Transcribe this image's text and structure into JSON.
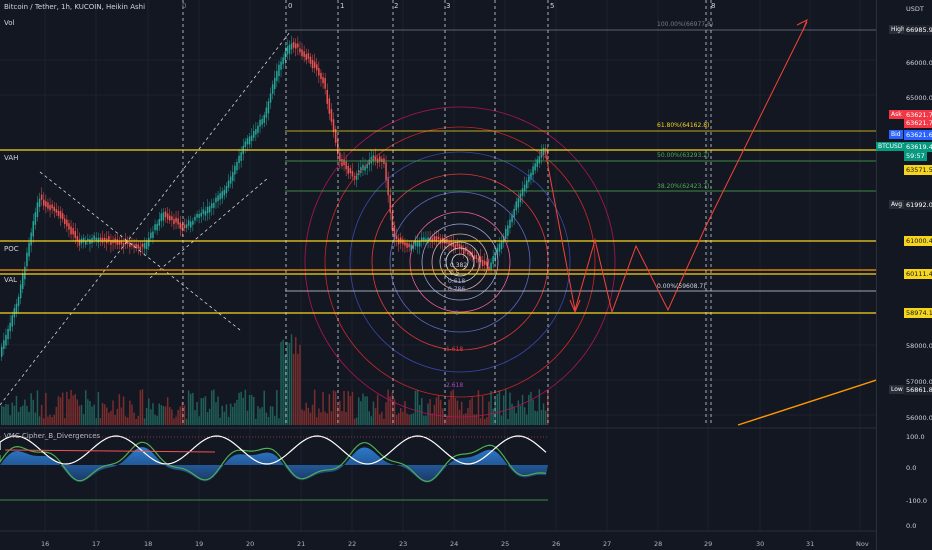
{
  "header": {
    "title": "Bitcoin / Tether, 1h, KUCOIN, Heikin Ashi",
    "volume_label": "Vol",
    "indicator_title": "VMC Cipher_B_Divergences",
    "currency": "USDT"
  },
  "levels": {
    "vah": "VAH",
    "poc": "POC",
    "val": "VAL"
  },
  "fib_labels": [
    "100.00%(66977.8)",
    "61.80%(64162.8)",
    "50.00%(63293.2)",
    "38.20%(62423.7)",
    "0.00%(59608.7)"
  ],
  "fib_circle_labels": [
    "0.382",
    "0.5",
    "0.618",
    "0.786",
    "1",
    "1.618",
    "2.618"
  ],
  "wave_labels": [
    "0",
    "1",
    "2",
    "3",
    "4",
    "5",
    "8"
  ],
  "price_axis": {
    "ticks": [
      "66000.0",
      "65000.0",
      "58000.0",
      "57000.0",
      "56000.0"
    ],
    "badges": [
      {
        "tag": "High",
        "value": "66985.9",
        "color": "#1e222d"
      },
      {
        "tag": "Ask",
        "value": "63621.7",
        "color": "#f23645"
      },
      {
        "tag": "",
        "value": "63621.7",
        "color": "#f23645"
      },
      {
        "tag": "Bid",
        "value": "63621.6",
        "color": "#2962ff"
      },
      {
        "tag": "BTCUSDT",
        "value": "63619.4",
        "color": "#089981"
      },
      {
        "tag": "",
        "value": "59:57",
        "color": "#089981"
      },
      {
        "tag": "",
        "value": "63571.5",
        "color": "#f7d51d"
      },
      {
        "tag": "Avg",
        "value": "61992.0",
        "color": "#1e222d"
      },
      {
        "tag": "",
        "value": "61000.4",
        "color": "#f7d51d"
      },
      {
        "tag": "",
        "value": "60111.4",
        "color": "#f7d51d"
      },
      {
        "tag": "",
        "value": "58974.1",
        "color": "#f7d51d"
      },
      {
        "tag": "Low",
        "value": "56861.8",
        "color": "#1e222d"
      }
    ],
    "osc_ticks": [
      "100.0",
      "0.0",
      "-100.0",
      "0.0"
    ]
  },
  "time_axis": [
    "16",
    "17",
    "18",
    "19",
    "20",
    "21",
    "22",
    "23",
    "24",
    "25",
    "26",
    "27",
    "28",
    "29",
    "30",
    "31",
    "Nov"
  ],
  "colors": {
    "up": "#26a69a",
    "down": "#ef5350",
    "yellow": "#f7d51d",
    "bg": "#131722"
  }
}
